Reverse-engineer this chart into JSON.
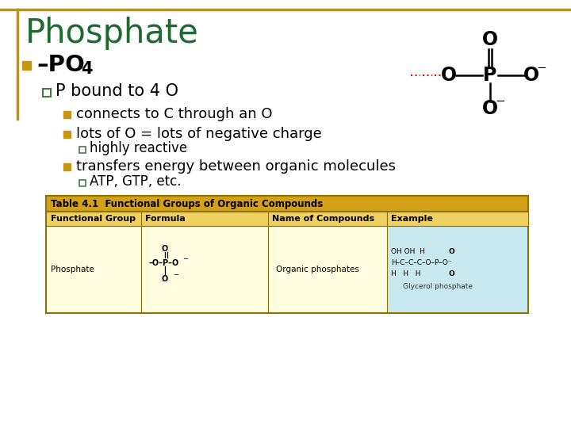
{
  "title": "Phosphate",
  "title_color": "#1E6B30",
  "background_color": "#FFFFFF",
  "border_color": "#B8960C",
  "bullet1_square_color": "#C8960C",
  "sub_bullet_square_color": "#4A7A4A",
  "level3_square_color": "#C8960C",
  "level4_square_color": "#4A7A4A",
  "level3_bullets": [
    "connects to C through an O",
    "lots of O = lots of negative charge",
    "transfers energy between organic molecules"
  ],
  "table_title": "Table 4.1  Functional Groups of Organic Compounds",
  "table_title_bg": "#D4A017",
  "table_header_bg": "#F0D060",
  "table_row_bg": "#FFFDE0",
  "table_border_color": "#8B7300",
  "table_columns": [
    "Functional Group",
    "Formula",
    "Name of Compounds",
    "Example"
  ],
  "table_example_bg": "#C8E8F0"
}
